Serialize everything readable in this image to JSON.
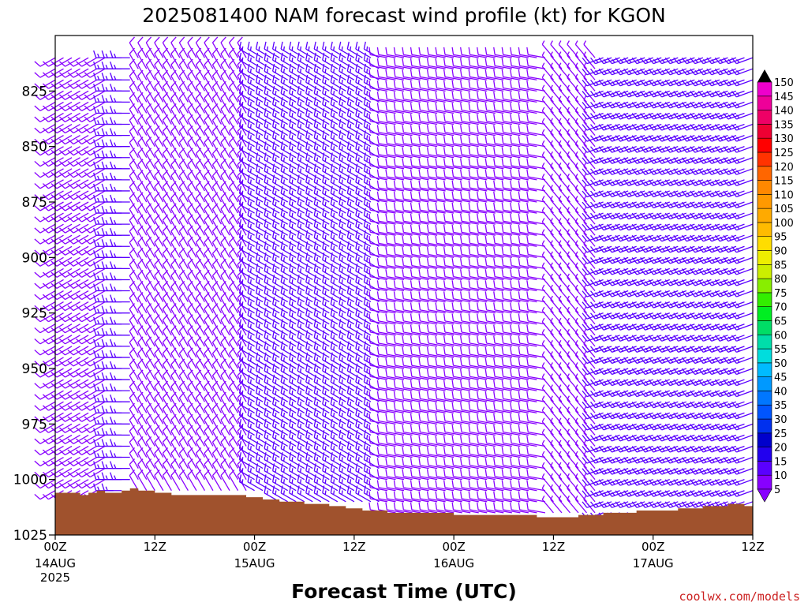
{
  "chart_data": {
    "type": "wind-barb time-height profile",
    "title": "2025081400 NAM forecast wind profile (kt) for KGON",
    "xlabel": "Forecast Time (UTC)",
    "ylabel": "",
    "y_axis": {
      "reversed": true,
      "range": [
        1025,
        800
      ],
      "ticks": [
        825,
        850,
        875,
        900,
        925,
        950,
        975,
        1000,
        1025
      ]
    },
    "x_axis": {
      "range_hours": [
        0,
        84
      ],
      "ticks": [
        {
          "hour": 0,
          "label": "00Z",
          "date": "14AUG",
          "year": "2025"
        },
        {
          "hour": 12,
          "label": "12Z",
          "date": "",
          "year": ""
        },
        {
          "hour": 24,
          "label": "00Z",
          "date": "15AUG",
          "year": ""
        },
        {
          "hour": 36,
          "label": "12Z",
          "date": "",
          "year": ""
        },
        {
          "hour": 48,
          "label": "00Z",
          "date": "16AUG",
          "year": ""
        },
        {
          "hour": 60,
          "label": "12Z",
          "date": "",
          "year": ""
        },
        {
          "hour": 72,
          "label": "00Z",
          "date": "17AUG",
          "year": ""
        },
        {
          "hour": 84,
          "label": "12Z",
          "date": "",
          "year": ""
        }
      ]
    },
    "surface_pressure": [
      [
        0,
        1006
      ],
      [
        1,
        1006
      ],
      [
        2,
        1006
      ],
      [
        3,
        1007
      ],
      [
        4,
        1006
      ],
      [
        5,
        1005
      ],
      [
        6,
        1006
      ],
      [
        7,
        1006
      ],
      [
        8,
        1005
      ],
      [
        9,
        1004
      ],
      [
        10,
        1005
      ],
      [
        11,
        1005
      ],
      [
        12,
        1006
      ],
      [
        13,
        1006
      ],
      [
        14,
        1007
      ],
      [
        15,
        1007
      ],
      [
        16,
        1007
      ],
      [
        17,
        1007
      ],
      [
        18,
        1007
      ],
      [
        19,
        1007
      ],
      [
        20,
        1007
      ],
      [
        21,
        1007
      ],
      [
        22,
        1007
      ],
      [
        23,
        1008
      ],
      [
        24,
        1008
      ],
      [
        25,
        1009
      ],
      [
        26,
        1009
      ],
      [
        27,
        1010
      ],
      [
        28,
        1010
      ],
      [
        29,
        1010
      ],
      [
        30,
        1011
      ],
      [
        31,
        1011
      ],
      [
        32,
        1011
      ],
      [
        33,
        1012
      ],
      [
        34,
        1012
      ],
      [
        35,
        1013
      ],
      [
        36,
        1013
      ],
      [
        37,
        1014
      ],
      [
        38,
        1014
      ],
      [
        39,
        1014
      ],
      [
        40,
        1015
      ],
      [
        41,
        1015
      ],
      [
        42,
        1015
      ],
      [
        43,
        1015
      ],
      [
        44,
        1015
      ],
      [
        45,
        1015
      ],
      [
        46,
        1015
      ],
      [
        47,
        1015
      ],
      [
        48,
        1016
      ],
      [
        49,
        1016
      ],
      [
        50,
        1016
      ],
      [
        51,
        1016
      ],
      [
        52,
        1016
      ],
      [
        53,
        1016
      ],
      [
        54,
        1016
      ],
      [
        55,
        1016
      ],
      [
        56,
        1016
      ],
      [
        57,
        1016
      ],
      [
        58,
        1017
      ],
      [
        59,
        1017
      ],
      [
        60,
        1017
      ],
      [
        61,
        1017
      ],
      [
        62,
        1017
      ],
      [
        63,
        1016
      ],
      [
        64,
        1016
      ],
      [
        65,
        1016
      ],
      [
        66,
        1015
      ],
      [
        67,
        1015
      ],
      [
        68,
        1015
      ],
      [
        69,
        1015
      ],
      [
        70,
        1014
      ],
      [
        71,
        1014
      ],
      [
        72,
        1014
      ],
      [
        73,
        1014
      ],
      [
        74,
        1014
      ],
      [
        75,
        1013
      ],
      [
        76,
        1013
      ],
      [
        77,
        1013
      ],
      [
        78,
        1012
      ],
      [
        79,
        1012
      ],
      [
        80,
        1012
      ],
      [
        81,
        1011
      ],
      [
        82,
        1011
      ],
      [
        83,
        1012
      ],
      [
        84,
        1012
      ]
    ],
    "colorbar": {
      "units": "kt",
      "levels": [
        5,
        10,
        15,
        20,
        25,
        30,
        35,
        40,
        45,
        50,
        55,
        60,
        65,
        70,
        75,
        80,
        85,
        90,
        95,
        100,
        105,
        110,
        115,
        120,
        125,
        130,
        135,
        140,
        145,
        150
      ],
      "colors": [
        "#8800ff",
        "#5a00ff",
        "#2200ee",
        "#0000cc",
        "#0030ee",
        "#0055ff",
        "#0077ff",
        "#0099ff",
        "#00bbff",
        "#00dddd",
        "#00ddaa",
        "#00dd66",
        "#00ee22",
        "#33ee00",
        "#88ee00",
        "#ccee00",
        "#eeee00",
        "#ffdd00",
        "#ffbb00",
        "#ffaa00",
        "#ff9900",
        "#ff8800",
        "#ff6600",
        "#ff3300",
        "#ff0000",
        "#ee0033",
        "#ee0066",
        "#ee0099",
        "#ee00cc",
        "#dd00ee"
      ]
    },
    "wind_field_pressures": [
      810,
      815,
      820,
      825,
      830,
      835,
      840,
      845,
      850,
      855,
      860,
      865,
      870,
      875,
      880,
      885,
      890,
      895,
      900,
      905,
      910,
      915,
      920,
      925,
      930,
      935,
      940,
      945,
      950,
      955,
      960,
      965,
      970,
      975,
      980,
      985,
      990,
      995,
      1000,
      1005,
      1010,
      1015,
      1020
    ],
    "wind_field_hours": [
      0,
      1,
      2,
      3,
      4,
      5,
      6,
      7,
      8,
      9,
      10,
      11,
      12,
      13,
      14,
      15,
      16,
      17,
      18,
      19,
      20,
      21,
      22,
      23,
      24,
      25,
      26,
      27,
      28,
      29,
      30,
      31,
      32,
      33,
      34,
      35,
      36,
      37,
      38,
      39,
      40,
      41,
      42,
      43,
      44,
      45,
      46,
      47,
      48,
      49,
      50,
      51,
      52,
      53,
      54,
      55,
      56,
      57,
      58,
      59,
      60,
      61,
      62,
      63,
      64,
      65,
      66,
      67,
      68,
      69,
      70,
      71,
      72,
      73,
      74,
      75,
      76,
      77,
      78,
      79,
      80,
      81,
      82,
      83,
      84
    ],
    "wind_regimes": [
      {
        "hours": [
          0,
          7
        ],
        "direction_deg": 240,
        "speed_kt": 9
      },
      {
        "hours": [
          7,
          10
        ],
        "direction_deg": 270,
        "speed_kt": 14
      },
      {
        "hours": [
          10,
          24
        ],
        "direction_deg": 330,
        "speed_kt": 8
      },
      {
        "hours": [
          24,
          40
        ],
        "direction_deg": 300,
        "speed_kt": 13
      },
      {
        "hours": [
          40,
          60
        ],
        "direction_deg": 280,
        "speed_kt": 9
      },
      {
        "hours": [
          60,
          66
        ],
        "direction_deg": 320,
        "speed_kt": 6
      },
      {
        "hours": [
          66,
          84
        ],
        "direction_deg": 250,
        "speed_kt": 14
      }
    ]
  },
  "credit": "coolwx.com/models"
}
